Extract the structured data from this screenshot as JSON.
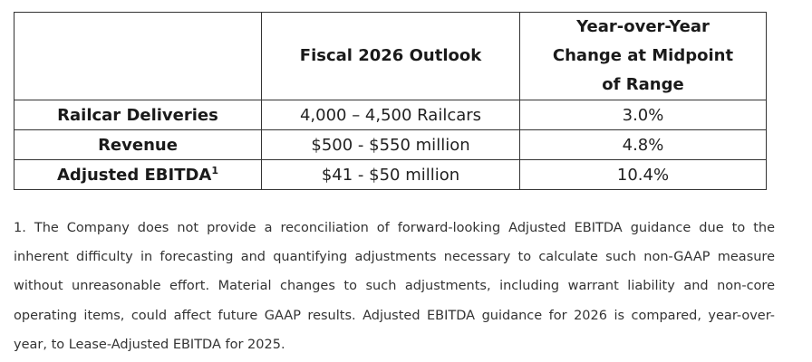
{
  "table": {
    "headers": {
      "col1": "",
      "col2": "Fiscal 2026 Outlook",
      "col3_lines": [
        "Year-over-Year",
        "Change at Midpoint",
        "of Range"
      ]
    },
    "rows": [
      {
        "label": "Railcar Deliveries",
        "sup": "",
        "outlook": "4,000 – 4,500 Railcars",
        "change": "3.0%"
      },
      {
        "label": "Revenue",
        "sup": "",
        "outlook": "$500 - $550 million",
        "change": "4.8%"
      },
      {
        "label": "Adjusted EBITDA",
        "sup": "1",
        "outlook": "$41 - $50 million",
        "change": "10.4%"
      }
    ]
  },
  "footnote": {
    "lines": [
      "1. The Company does not provide a reconciliation of forward-looking Adjusted EBITDA guidance due to the",
      "inherent difficulty in forecasting and quantifying adjustments necessary to calculate such non-GAAP measure",
      "without unreasonable effort. Material changes to such adjustments, including warrant liability and non-core",
      "operating items, could affect future GAAP results. Adjusted EBITDA guidance for 2026 is compared, year-over-",
      "year, to Lease-Adjusted EBITDA for 2025."
    ]
  }
}
